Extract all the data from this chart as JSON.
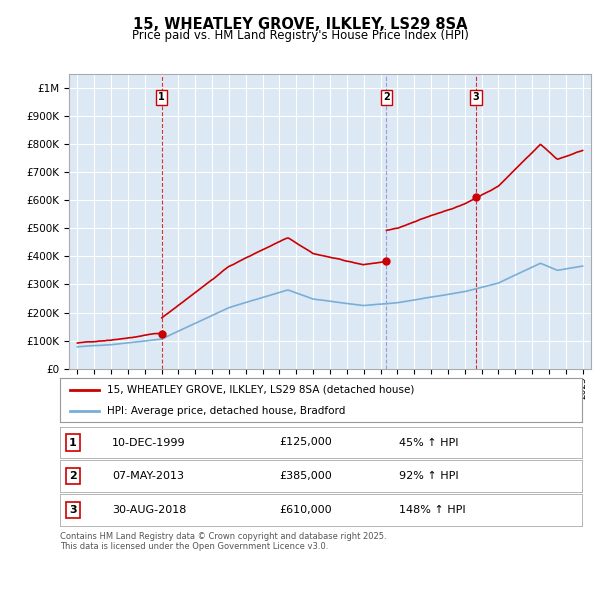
{
  "title": "15, WHEATLEY GROVE, ILKLEY, LS29 8SA",
  "subtitle": "Price paid vs. HM Land Registry's House Price Index (HPI)",
  "legend_line1": "15, WHEATLEY GROVE, ILKLEY, LS29 8SA (detached house)",
  "legend_line2": "HPI: Average price, detached house, Bradford",
  "footer_line1": "Contains HM Land Registry data © Crown copyright and database right 2025.",
  "footer_line2": "This data is licensed under the Open Government Licence v3.0.",
  "transactions": [
    {
      "num": 1,
      "date": "10-DEC-1999",
      "price": "£125,000",
      "hpi": "45% ↑ HPI",
      "year": 2000.0,
      "value": 125000
    },
    {
      "num": 2,
      "date": "07-MAY-2013",
      "price": "£385,000",
      "hpi": "92% ↑ HPI",
      "year": 2013.35,
      "value": 385000
    },
    {
      "num": 3,
      "date": "30-AUG-2018",
      "price": "£610,000",
      "hpi": "148% ↑ HPI",
      "year": 2018.67,
      "value": 610000
    }
  ],
  "red_color": "#cc0000",
  "blue_color": "#7aaed6",
  "chart_bg": "#dce9f5",
  "bg_color": "#ffffff",
  "grid_color": "#ffffff",
  "ylim": [
    0,
    1050000
  ],
  "xlim": [
    1994.5,
    2025.5
  ],
  "vline_colors": [
    "#cc0000",
    "#8888cc",
    "#cc0000"
  ]
}
